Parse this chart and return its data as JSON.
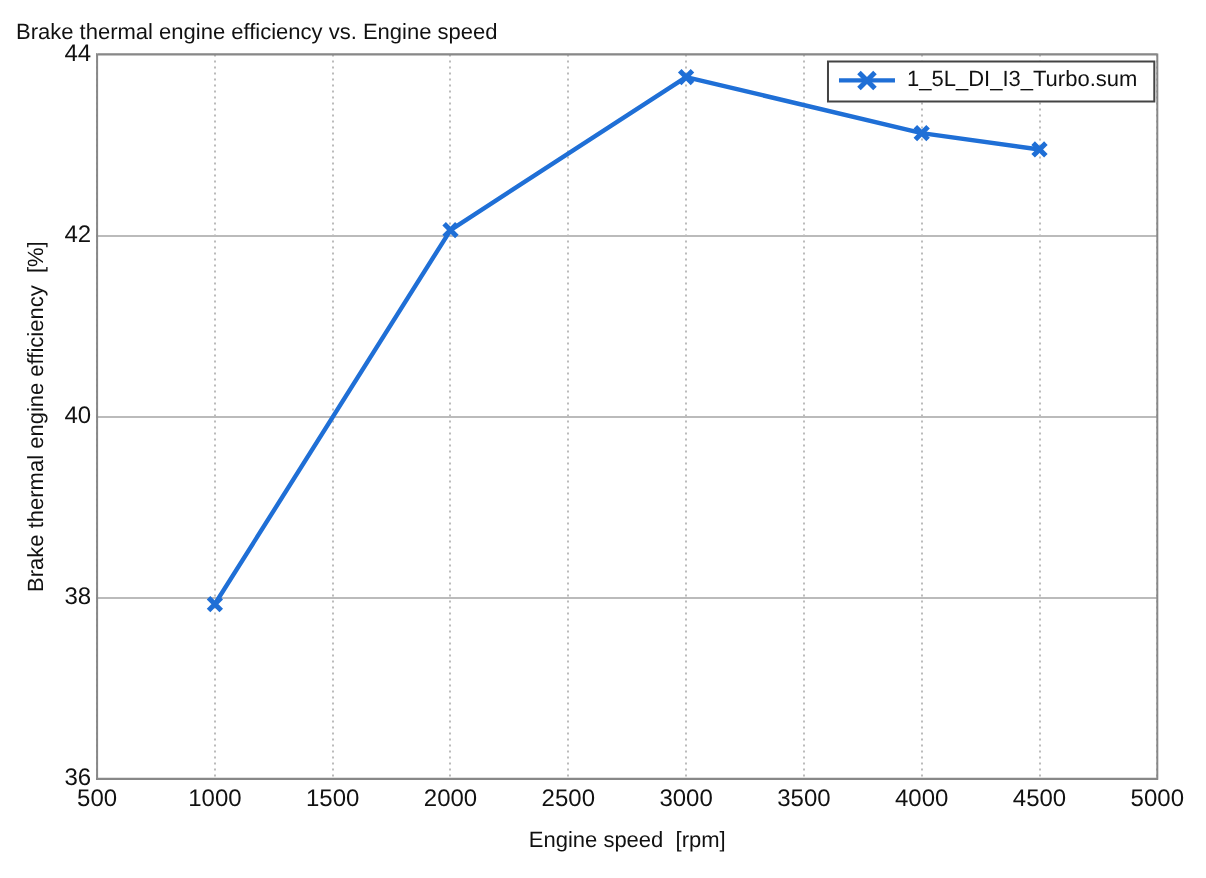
{
  "chart_data": {
    "type": "line",
    "title": "Brake thermal engine efficiency vs. Engine speed",
    "xlabel": "Engine speed  [rpm]",
    "ylabel": "Brake thermal engine efficiency  [%]",
    "x": [
      1000,
      2000,
      3000,
      4000,
      4500
    ],
    "series": [
      {
        "name": "1_5L_DI_I3_Turbo.sum",
        "color": "#1f6fd6",
        "values": [
          37.93,
          42.06,
          43.75,
          43.13,
          42.95
        ]
      }
    ],
    "xlim": [
      500,
      5000
    ],
    "xticks": [
      500,
      1000,
      1500,
      2000,
      2500,
      3000,
      3500,
      4000,
      4500,
      5000
    ],
    "ylim": [
      36,
      44
    ],
    "yticks": [
      36,
      38,
      40,
      42,
      44
    ],
    "grid": true,
    "legend": "top right",
    "marker": "cross",
    "line_style": "solid"
  }
}
